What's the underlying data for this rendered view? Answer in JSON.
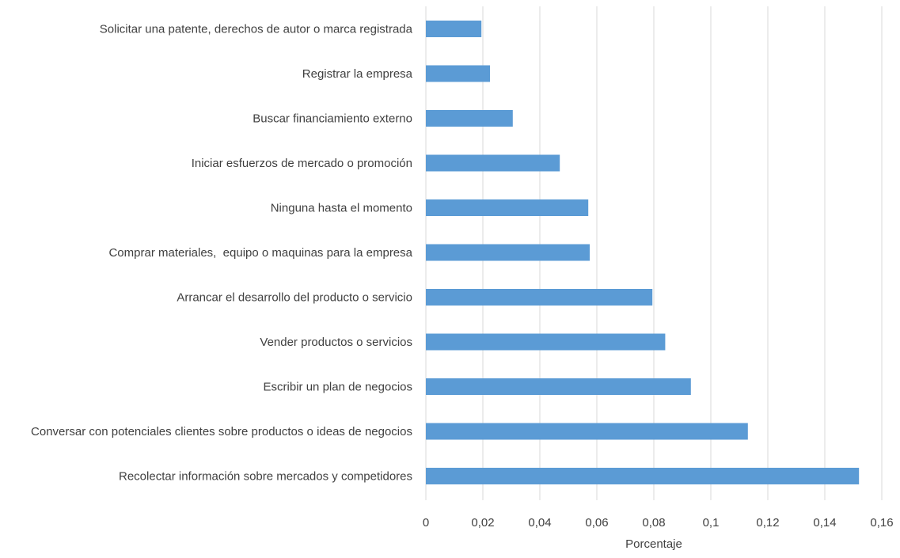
{
  "chart_data": {
    "type": "bar",
    "orientation": "horizontal",
    "title": "",
    "xlabel": "Porcentaje",
    "ylabel": "",
    "xlim": [
      0,
      0.16
    ],
    "x_ticks": [
      0,
      0.02,
      0.04,
      0.06,
      0.08,
      0.1,
      0.12,
      0.14,
      0.16
    ],
    "x_tick_labels": [
      "0",
      "0,02",
      "0,04",
      "0,06",
      "0,08",
      "0,1",
      "0,12",
      "0,14",
      "0,16"
    ],
    "grid": "vertical",
    "legend": "none",
    "bar_color": "#5b9bd5",
    "categories": [
      "Solicitar una patente, derechos de autor o marca registrada",
      "Registrar la empresa",
      "Buscar financiamiento externo",
      "Iniciar esfuerzos de mercado o promoción",
      "Ninguna hasta el momento",
      "Comprar materiales,  equipo o maquinas para la empresa",
      "Arrancar el desarrollo del producto o servicio",
      "Vender productos o servicios",
      "Escribir un plan de negocios",
      "Conversar con potenciales clientes sobre productos o ideas de negocios",
      "Recolectar información sobre mercados y competidores"
    ],
    "values": [
      0.0195,
      0.0225,
      0.0305,
      0.047,
      0.057,
      0.0575,
      0.0795,
      0.084,
      0.093,
      0.113,
      0.152
    ]
  }
}
